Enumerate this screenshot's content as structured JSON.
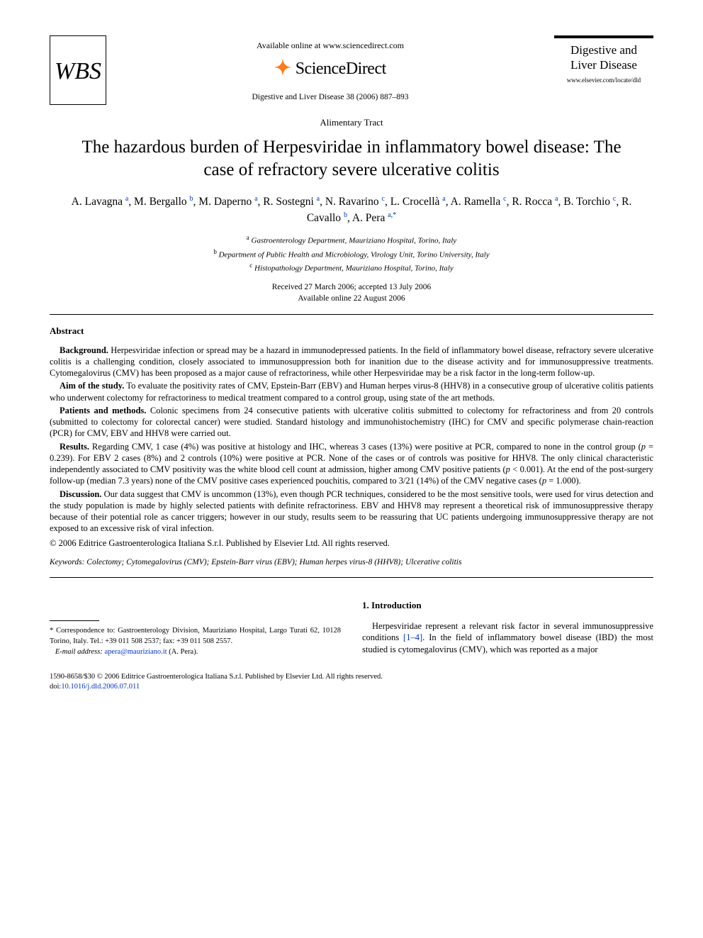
{
  "header": {
    "publisher_logo_text": "WBS",
    "available_text": "Available online at www.sciencedirect.com",
    "sciencedirect_text": "ScienceDirect",
    "citation": "Digestive and Liver Disease 38 (2006) 887–893",
    "journal_title_line1": "Digestive and",
    "journal_title_line2": "Liver Disease",
    "journal_locate": "www.elsevier.com/locate/dld"
  },
  "article": {
    "section_label": "Alimentary Tract",
    "title": "The hazardous burden of Herpesviridae in inflammatory bowel disease: The case of refractory severe ulcerative colitis",
    "authors_html": "A. Lavagna <sup>a</sup>, M. Bergallo <sup>b</sup>, M. Daperno <sup>a</sup>, R. Sostegni <sup>a</sup>, N. Ravarino <sup>c</sup>, L. Crocellà <sup>a</sup>, A. Ramella <sup>c</sup>, R. Rocca <sup>a</sup>, B. Torchio <sup>c</sup>, R. Cavallo <sup>b</sup>, A. Pera <sup>a,*</sup>",
    "affiliations": [
      {
        "label": "a",
        "text": "Gastroenterology Department, Mauriziano Hospital, Torino, Italy"
      },
      {
        "label": "b",
        "text": "Department of Public Health and Microbiology, Virology Unit, Torino University, Italy"
      },
      {
        "label": "c",
        "text": "Histopathology Department, Mauriziano Hospital, Torino, Italy"
      }
    ],
    "history_line1": "Received 27 March 2006; accepted 13 July 2006",
    "history_line2": "Available online 22 August 2006"
  },
  "abstract": {
    "heading": "Abstract",
    "paras": [
      {
        "lead": "Background.",
        "body": "Herpesviridae infection or spread may be a hazard in immunodepressed patients. In the field of inflammatory bowel disease, refractory severe ulcerative colitis is a challenging condition, closely associated to immunosuppression both for inanition due to the disease activity and for immunosuppressive treatments. Cytomegalovirus (CMV) has been proposed as a major cause of refractoriness, while other Herpesviridae may be a risk factor in the long-term follow-up."
      },
      {
        "lead": "Aim of the study.",
        "body": "To evaluate the positivity rates of CMV, Epstein-Barr (EBV) and Human herpes virus-8 (HHV8) in a consecutive group of ulcerative colitis patients who underwent colectomy for refractoriness to medical treatment compared to a control group, using state of the art methods."
      },
      {
        "lead": "Patients and methods.",
        "body": "Colonic specimens from 24 consecutive patients with ulcerative colitis submitted to colectomy for refractoriness and from 20 controls (submitted to colectomy for colorectal cancer) were studied. Standard histology and immunohistochemistry (IHC) for CMV and specific polymerase chain-reaction (PCR) for CMV, EBV and HHV8 were carried out."
      },
      {
        "lead": "Results.",
        "body": "Regarding CMV, 1 case (4%) was positive at histology and IHC, whereas 3 cases (13%) were positive at PCR, compared to none in the control group (p = 0.239). For EBV 2 cases (8%) and 2 controls (10%) were positive at PCR. None of the cases or of controls was positive for HHV8. The only clinical characteristic independently associated to CMV positivity was the white blood cell count at admission, higher among CMV positive patients (p < 0.001). At the end of the post-surgery follow-up (median 7.3 years) none of the CMV positive cases experienced pouchitis, compared to 3/21 (14%) of the CMV negative cases (p = 1.000)."
      },
      {
        "lead": "Discussion.",
        "body": "Our data suggest that CMV is uncommon (13%), even though PCR techniques, considered to be the most sensitive tools, were used for virus detection and the study population is made by highly selected patients with definite refractoriness. EBV and HHV8 may represent a theoretical risk of immunosuppressive therapy because of their potential role as cancer triggers; however in our study, results seem to be reassuring that UC patients undergoing immunosuppressive therapy are not exposed to an excessive risk of viral infection."
      }
    ],
    "copyright": "© 2006 Editrice Gastroenterologica Italiana S.r.l. Published by Elsevier Ltd. All rights reserved.",
    "keywords_label": "Keywords:",
    "keywords": "Colectomy; Cytomegalovirus (CMV); Epstein-Barr virus (EBV); Human herpes virus-8 (HHV8); Ulcerative colitis"
  },
  "correspondence": {
    "star": "*",
    "text": "Correspondence to: Gastroenterology Division, Mauriziano Hospital, Largo Turati 62, 10128 Torino, Italy. Tel.: +39 011 508 2537; fax: +39 011 508 2557.",
    "email_label": "E-mail address:",
    "email": "apera@mauriziano.it",
    "email_name": "(A. Pera)."
  },
  "intro": {
    "heading": "1. Introduction",
    "para": "Herpesviridae represent a relevant risk factor in several immunosuppressive conditions [1–4]. In the field of inflammatory bowel disease (IBD) the most studied is cytomegalovirus (CMV), which was reported as a major",
    "refs_link_text": "[1–4]"
  },
  "footer": {
    "line1": "1590-8658/$30 © 2006 Editrice Gastroenterologica Italiana S.r.l. Published by Elsevier Ltd. All rights reserved.",
    "doi_label": "doi:",
    "doi": "10.1016/j.dld.2006.07.011"
  },
  "colors": {
    "link": "#0033cc",
    "swirl": "#ff7a1a",
    "text": "#000000",
    "bg": "#ffffff"
  }
}
